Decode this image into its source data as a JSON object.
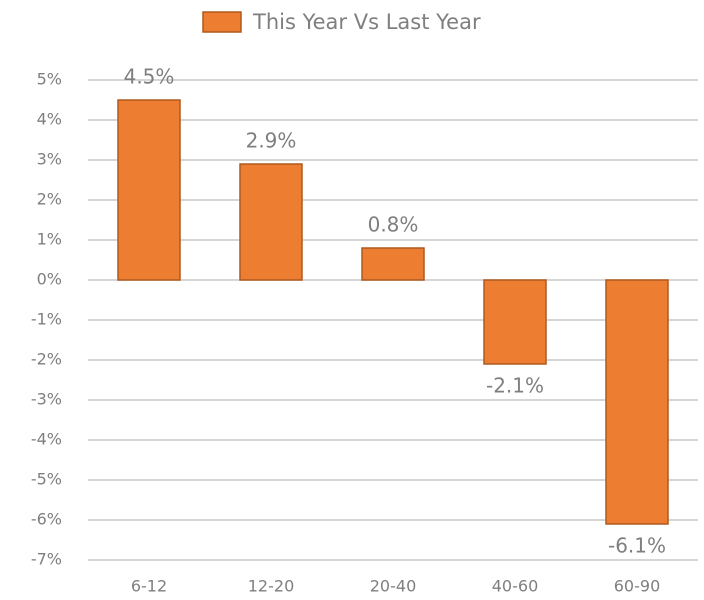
{
  "chart_data": {
    "type": "bar",
    "categories": [
      "6-12",
      "12-20",
      "20-40",
      "40-60",
      "60-90"
    ],
    "series": [
      {
        "name": "This Year Vs Last Year",
        "color": "#ed7d31",
        "edgecolor": "#ae5a21",
        "values": [
          4.5,
          2.9,
          0.8,
          -2.1,
          -6.1
        ],
        "value_labels": [
          "4.5%",
          "2.9%",
          "0.8%",
          "-2.1%",
          "-6.1%"
        ]
      }
    ],
    "ylim": [
      -7,
      5
    ],
    "yticks": [
      {
        "value": -7,
        "label": "-7%"
      },
      {
        "value": -6,
        "label": "-6%"
      },
      {
        "value": -5,
        "label": "-5%"
      },
      {
        "value": -4,
        "label": "-4%"
      },
      {
        "value": -3,
        "label": "-3%"
      },
      {
        "value": -2,
        "label": "-2%"
      },
      {
        "value": -1,
        "label": "-1%"
      },
      {
        "value": 0,
        "label": "0%"
      },
      {
        "value": 1,
        "label": "1%"
      },
      {
        "value": 2,
        "label": "2%"
      },
      {
        "value": 3,
        "label": "3%"
      },
      {
        "value": 4,
        "label": "4%"
      },
      {
        "value": 5,
        "label": "5%"
      }
    ],
    "grid": true,
    "legend": "top"
  }
}
